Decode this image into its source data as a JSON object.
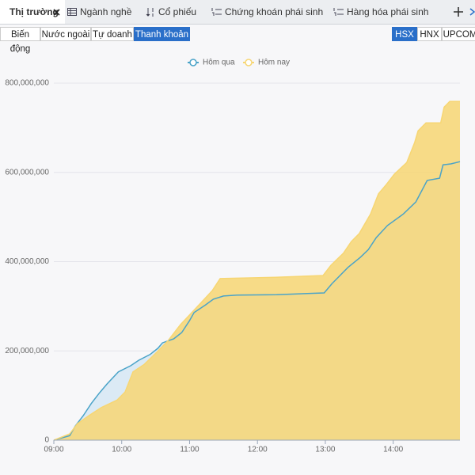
{
  "tabs": [
    "Thị trường",
    "Ngành nghề",
    "Cổ phiếu",
    "Chứng khoán phái sinh",
    "Hàng hóa phái sinh"
  ],
  "sub_tabs": [
    "Biến động",
    "Nước ngoài",
    "Tự doanh",
    "Thanh khoản"
  ],
  "exchanges": [
    "HSX",
    "HNX",
    "UPCOM"
  ],
  "chart_data": {
    "type": "area",
    "series": [
      {
        "name": "Hôm qua",
        "color": "#4aa3c8",
        "x": [
          540,
          554,
          559,
          566,
          573,
          580,
          587,
          597,
          608,
          615,
          625,
          632,
          636,
          646,
          653,
          660,
          664,
          674,
          681,
          690,
          702,
          737,
          779,
          786,
          793,
          800,
          811,
          818,
          825,
          835,
          849,
          860,
          870,
          881,
          884,
          891,
          899
        ],
        "values": [
          0,
          10000000,
          32000000,
          55000000,
          82000000,
          105000000,
          126000000,
          153000000,
          167000000,
          179000000,
          192000000,
          206000000,
          218000000,
          227000000,
          241000000,
          268000000,
          286000000,
          303000000,
          316000000,
          323000000,
          325000000,
          326000000,
          330000000,
          351000000,
          369000000,
          387000000,
          410000000,
          427000000,
          454000000,
          481000000,
          507000000,
          534000000,
          582000000,
          587000000,
          617000000,
          619000000,
          624000000
        ]
      },
      {
        "name": "Hôm nay",
        "color": "#f7d673",
        "x": [
          540,
          554,
          561,
          571,
          582,
          596,
          603,
          610,
          620,
          631,
          641,
          652,
          662,
          673,
          680,
          687,
          736,
          778,
          785,
          796,
          803,
          810,
          820,
          827,
          834,
          841,
          852,
          859,
          862,
          869,
          882,
          885,
          890,
          899
        ],
        "values": [
          0,
          14000000,
          37000000,
          55000000,
          73000000,
          90000000,
          108000000,
          153000000,
          170000000,
          197000000,
          223000000,
          259000000,
          286000000,
          316000000,
          335000000,
          362000000,
          365000000,
          369000000,
          392000000,
          419000000,
          445000000,
          463000000,
          507000000,
          552000000,
          573000000,
          596000000,
          622000000,
          667000000,
          693000000,
          711000000,
          711000000,
          746000000,
          759000000,
          759000000
        ]
      }
    ],
    "xlim": [
      540,
      899
    ],
    "xticks": [
      {
        "value": 540,
        "label": "09:00"
      },
      {
        "value": 600,
        "label": "10:00"
      },
      {
        "value": 660,
        "label": "11:00"
      },
      {
        "value": 720,
        "label": "12:00"
      },
      {
        "value": 780,
        "label": "13:00"
      },
      {
        "value": 840,
        "label": "14:00"
      }
    ],
    "ylim": [
      0,
      800000000
    ],
    "yticks": [
      0,
      {
        "value": 200000000,
        "label": "200,000,000"
      },
      {
        "value": 400000000,
        "label": "400,000,000"
      },
      {
        "value": 600000000,
        "label": "600,000,000"
      },
      {
        "value": 800000000,
        "label": "800,000,000"
      }
    ],
    "grid": true,
    "legend": "top"
  }
}
